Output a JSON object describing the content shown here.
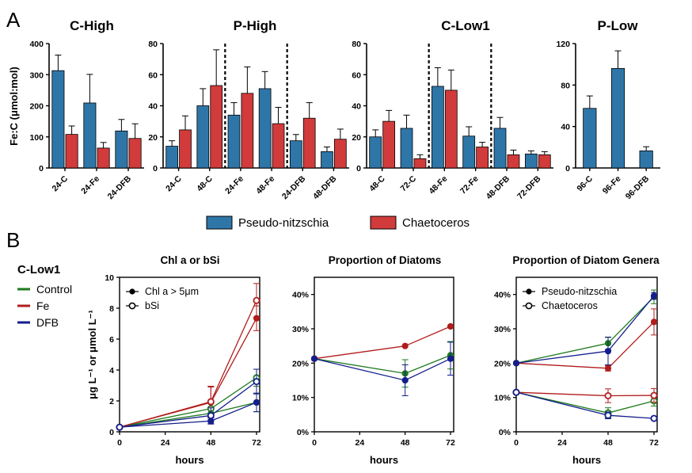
{
  "panel_labels": [
    "A",
    "B"
  ],
  "colors": {
    "pseudo": "#2f76a8",
    "chaeto": "#d13b3b",
    "control": "#1d7a1d",
    "fe": "#b11c1c",
    "dfb": "#141e8c"
  },
  "legend_a": [
    "Pseudo-nitzschia",
    "Chaetoceros"
  ],
  "side_legend": {
    "title": "C-Low1",
    "items": [
      "Control",
      "Fe",
      "DFB"
    ]
  },
  "y_label_a": "Fe:C (μmol:mol)",
  "chart_data": [
    {
      "type": "bar",
      "title": "C-High",
      "categories": [
        "24-C",
        "24-Fe",
        "24-DFB"
      ],
      "ylim": [
        0,
        400
      ],
      "yticks": [
        0,
        100,
        200,
        300,
        400
      ],
      "series": [
        {
          "name": "Pseudo-nitzschia",
          "values": [
            313,
            209,
            119
          ],
          "errors": [
            50,
            92,
            37
          ]
        },
        {
          "name": "Chaetoceros",
          "values": [
            108,
            64,
            95
          ],
          "errors": [
            27,
            18,
            47
          ]
        }
      ]
    },
    {
      "type": "bar",
      "title": "P-High",
      "categories": [
        "24-C",
        "48-C",
        "24-Fe",
        "48-Fe",
        "24-DFB",
        "48-DFB"
      ],
      "ylim": [
        0,
        80
      ],
      "yticks": [
        0,
        20,
        40,
        60,
        80
      ],
      "dividers_after": [
        2,
        4
      ],
      "series": [
        {
          "name": "Pseudo-nitzschia",
          "values": [
            14,
            40,
            34,
            51,
            17.5,
            10.5
          ],
          "errors": [
            3.5,
            11,
            8,
            11,
            4,
            3
          ]
        },
        {
          "name": "Chaetoceros",
          "values": [
            24.5,
            53,
            48,
            28.5,
            32,
            18.5
          ],
          "errors": [
            9,
            23,
            17,
            10.5,
            10,
            6.5
          ]
        }
      ]
    },
    {
      "type": "bar",
      "title": "C-Low1",
      "categories": [
        "48-C",
        "72-C",
        "48-Fe",
        "72-Fe",
        "48-DFB",
        "72-DFB"
      ],
      "ylim": [
        0,
        80
      ],
      "yticks": [
        0,
        20,
        40,
        60,
        80
      ],
      "dividers_after": [
        2,
        4
      ],
      "series": [
        {
          "name": "Pseudo-nitzschia",
          "values": [
            20,
            25.5,
            52.5,
            20.5,
            25.5,
            9
          ],
          "errors": [
            4.5,
            8.5,
            12,
            6,
            7,
            2
          ]
        },
        {
          "name": "Chaetoceros",
          "values": [
            30,
            6,
            50,
            13.5,
            8.5,
            8.5
          ],
          "errors": [
            7,
            2.5,
            13,
            3,
            3,
            2
          ]
        }
      ]
    },
    {
      "type": "bar",
      "title": "P-Low",
      "categories": [
        "96-C",
        "96-Fe",
        "96-DFB"
      ],
      "ylim": [
        0,
        120
      ],
      "yticks": [
        0,
        40,
        80,
        120
      ],
      "series": [
        {
          "name": "Pseudo-nitzschia",
          "values": [
            57.5,
            96,
            16.5
          ],
          "errors": [
            12,
            17,
            4
          ]
        }
      ]
    },
    {
      "type": "line",
      "title": "Chl a or bSi",
      "xlabel": "hours",
      "ylabel": "μg L⁻¹ or μmol L⁻¹",
      "xlim": [
        0,
        72
      ],
      "xticks": [
        0,
        24,
        48,
        72
      ],
      "ylim": [
        0,
        10
      ],
      "yticks": [
        0,
        2,
        4,
        6,
        8,
        10
      ],
      "legend": [
        "Chl a > 5μm",
        "bSi"
      ],
      "x": [
        0,
        48,
        72
      ],
      "series": [
        {
          "treatment": "Control",
          "marker": "filled",
          "values": [
            0.3,
            1.2,
            1.9
          ],
          "errors": [
            0.05,
            0.4,
            0.6
          ]
        },
        {
          "treatment": "Fe",
          "marker": "filled",
          "values": [
            0.3,
            1.9,
            7.35
          ],
          "errors": [
            0.05,
            1.0,
            0.8
          ]
        },
        {
          "treatment": "DFB",
          "marker": "filled",
          "values": [
            0.3,
            0.7,
            1.9
          ],
          "errors": [
            0.05,
            0.2,
            0.6
          ]
        },
        {
          "treatment": "Control",
          "marker": "open",
          "values": [
            0.3,
            1.5,
            3.5
          ],
          "errors": [
            0.05,
            0.35,
            0.55
          ]
        },
        {
          "treatment": "Fe",
          "marker": "open",
          "values": [
            0.3,
            1.95,
            8.5
          ],
          "errors": [
            0.05,
            1.0,
            1.1
          ]
        },
        {
          "treatment": "DFB",
          "marker": "open",
          "values": [
            0.3,
            1.05,
            3.25
          ],
          "errors": [
            0.05,
            0.5,
            0.8
          ]
        }
      ]
    },
    {
      "type": "line",
      "title": "Proportion of Diatoms",
      "xlabel": "hours",
      "xlim": [
        0,
        72
      ],
      "xticks": [
        0,
        24,
        48,
        72
      ],
      "ylim": [
        0,
        0.45
      ],
      "yticks": [
        0,
        0.1,
        0.2,
        0.3,
        0.4
      ],
      "yticklabels": [
        "0%",
        "10%",
        "20%",
        "30%",
        "40%"
      ],
      "x": [
        0,
        48,
        72
      ],
      "series": [
        {
          "treatment": "Control",
          "marker": "filled",
          "values": [
            0.213,
            0.17,
            0.223
          ],
          "errors": [
            0,
            0.04,
            0.04
          ]
        },
        {
          "treatment": "Fe",
          "marker": "filled",
          "values": [
            0.213,
            0.25,
            0.307
          ],
          "errors": [
            0,
            0,
            0
          ]
        },
        {
          "treatment": "DFB",
          "marker": "filled",
          "values": [
            0.213,
            0.15,
            0.213
          ],
          "errors": [
            0,
            0.045,
            0.048
          ]
        }
      ]
    },
    {
      "type": "line",
      "title": "Proportion of Diatom Genera",
      "xlabel": "hours",
      "xlim": [
        0,
        72
      ],
      "xticks": [
        0,
        24,
        48,
        72
      ],
      "ylim": [
        0,
        0.45
      ],
      "yticks": [
        0,
        0.1,
        0.2,
        0.3,
        0.4
      ],
      "yticklabels": [
        "0%",
        "10%",
        "20%",
        "30%",
        "40%"
      ],
      "legend": [
        "Pseudo-nitzschia",
        "Chaetoceros"
      ],
      "x": [
        0,
        48,
        72
      ],
      "series": [
        {
          "treatment": "Control",
          "marker": "filled",
          "values": [
            0.2,
            0.258,
            0.393
          ],
          "errors": [
            0,
            0.018,
            0.02
          ]
        },
        {
          "treatment": "Fe",
          "marker": "filled",
          "values": [
            0.2,
            0.185,
            0.32
          ],
          "errors": [
            0,
            0.008,
            0.038
          ]
        },
        {
          "treatment": "DFB",
          "marker": "filled",
          "values": [
            0.2,
            0.235,
            0.396
          ],
          "errors": [
            0,
            0.04,
            0.01
          ]
        },
        {
          "treatment": "Control",
          "marker": "open",
          "values": [
            0.115,
            0.055,
            0.09
          ],
          "errors": [
            0,
            0.015,
            0.015
          ]
        },
        {
          "treatment": "Fe",
          "marker": "open",
          "values": [
            0.115,
            0.105,
            0.106
          ],
          "errors": [
            0,
            0.02,
            0.02
          ]
        },
        {
          "treatment": "DFB",
          "marker": "open",
          "values": [
            0.115,
            0.048,
            0.039
          ],
          "errors": [
            0,
            0.01,
            0
          ]
        }
      ]
    }
  ]
}
